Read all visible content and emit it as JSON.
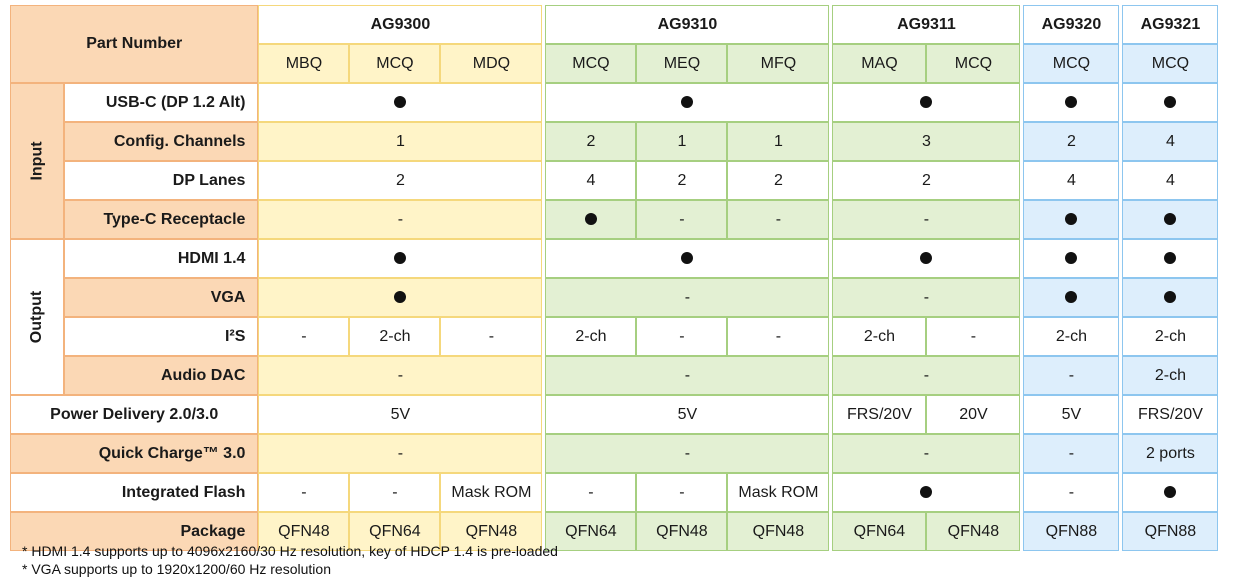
{
  "header": {
    "part_number": "Part Number",
    "chips": [
      "AG9300",
      "AG9310",
      "AG9311",
      "AG9320",
      "AG9321"
    ],
    "variants": [
      "MBQ",
      "MCQ",
      "MDQ",
      "MCQ",
      "MEQ",
      "MFQ",
      "MAQ",
      "MCQ",
      "MCQ",
      "MCQ"
    ]
  },
  "groups": {
    "input": "Input",
    "output": "Output"
  },
  "rows": {
    "usbc": {
      "label": "USB-C (DP 1.2 Alt)"
    },
    "config": {
      "label": "Config. Channels",
      "ag9300": "1",
      "ag9310": [
        "2",
        "1",
        "1"
      ],
      "ag9311": "3",
      "ag9320": "2",
      "ag9321": "4"
    },
    "dplanes": {
      "label": "DP Lanes",
      "ag9300": "2",
      "ag9310": [
        "4",
        "2",
        "2"
      ],
      "ag9311": "2",
      "ag9320": "4",
      "ag9321": "4"
    },
    "typec": {
      "label": "Type-C Receptacle",
      "ag9300": "-",
      "ag9310_meq": "-",
      "ag9310_mfq": "-",
      "ag9311": "-"
    },
    "hdmi": {
      "label": "HDMI 1.4"
    },
    "vga": {
      "label": "VGA",
      "ag9310": "-",
      "ag9311": "-"
    },
    "i2s": {
      "label": "I²S",
      "values": [
        "-",
        "2-ch",
        "-",
        "2-ch",
        "-",
        "-",
        "2-ch",
        "-",
        "2-ch",
        "2-ch"
      ]
    },
    "audiodac": {
      "label": "Audio DAC",
      "ag9300": "-",
      "ag9310": "-",
      "ag9311": "-",
      "ag9320": "-",
      "ag9321": "2-ch"
    },
    "pd": {
      "label": "Power Delivery 2.0/3.0",
      "ag9300": "5V",
      "ag9310": "5V",
      "ag9311": [
        "FRS/20V",
        "20V"
      ],
      "ag9320": "5V",
      "ag9321": "FRS/20V"
    },
    "qc": {
      "label": "Quick Charge™ 3.0",
      "ag9300": "-",
      "ag9310": "-",
      "ag9311": "-",
      "ag9320": "-",
      "ag9321": "2 ports"
    },
    "flash": {
      "label": "Integrated Flash",
      "ag9300": [
        "-",
        "-",
        "Mask ROM"
      ],
      "ag9310": [
        "-",
        "-",
        "Mask ROM"
      ],
      "ag9320": "-"
    },
    "package": {
      "label": "Package",
      "values": [
        "QFN48",
        "QFN64",
        "QFN48",
        "QFN64",
        "QFN48",
        "QFN48",
        "QFN64",
        "QFN48",
        "QFN88",
        "QFN88"
      ]
    }
  },
  "notes": [
    "* HDMI 1.4 supports up to 4096x2160/30 Hz resolution, key of HDCP 1.4 is pre-loaded",
    "* VGA supports up to 1920x1200/60 Hz resolution"
  ],
  "colors": {
    "header_orange": "#fbd8b5",
    "ag9300_yellow": "#fff4c8",
    "ag9310_green": "#e3f0d3",
    "ag9320_blue": "#ddeefc"
  }
}
